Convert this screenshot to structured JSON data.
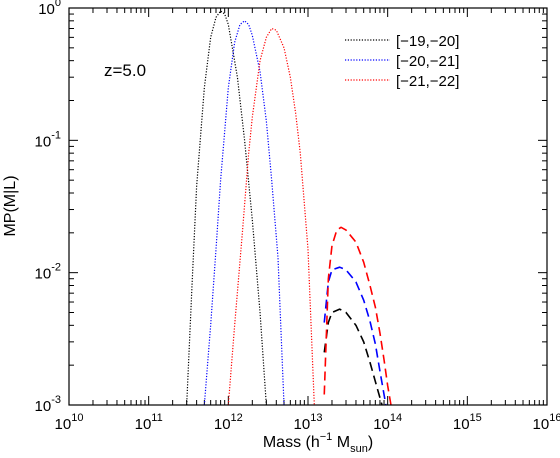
{
  "chart_data": {
    "type": "line",
    "annotation": "z=5.0",
    "xlabel": {
      "main": "Mass (h",
      "sup": "−1",
      "mid": " M",
      "sub": "sun",
      "end": ")"
    },
    "ylabel": "MP(M|L)",
    "x_scale": "log",
    "y_scale": "log",
    "xlim": [
      10000000000.0,
      1e+16
    ],
    "ylim": [
      0.001,
      1
    ],
    "x_ticks": [
      {
        "value": 10000000000.0,
        "base": "10",
        "exp": "10"
      },
      {
        "value": 100000000000.0,
        "base": "10",
        "exp": "11"
      },
      {
        "value": 1000000000000.0,
        "base": "10",
        "exp": "12"
      },
      {
        "value": 10000000000000.0,
        "base": "10",
        "exp": "13"
      },
      {
        "value": 100000000000000.0,
        "base": "10",
        "exp": "14"
      },
      {
        "value": 1000000000000000.0,
        "base": "10",
        "exp": "15"
      },
      {
        "value": 1e+16,
        "base": "10",
        "exp": "16"
      }
    ],
    "y_ticks": [
      {
        "value": 0.001,
        "base": "10",
        "exp": "-3"
      },
      {
        "value": 0.01,
        "base": "10",
        "exp": "-2"
      },
      {
        "value": 0.1,
        "base": "10",
        "exp": "-1"
      },
      {
        "value": 1,
        "base": "10",
        "exp": "0"
      }
    ],
    "legend_position": "top-right",
    "grid": false,
    "series": [
      {
        "name": "[−19,−20]",
        "color": "#000000",
        "segments": [
          {
            "style": "dotted",
            "x": [
              300000000000.0,
              350000000000.0,
              400000000000.0,
              500000000000.0,
              600000000000.0,
              700000000000.0,
              800000000000.0,
              900000000000.0,
              1000000000000.0,
              1300000000000.0,
              1600000000000.0,
              2000000000000.0,
              2500000000000.0,
              3000000000000.0
            ],
            "y": [
              0.001,
              0.008,
              0.045,
              0.25,
              0.6,
              0.85,
              0.95,
              0.9,
              0.75,
              0.3,
              0.1,
              0.025,
              0.005,
              0.001
            ]
          },
          {
            "style": "dashed",
            "x": [
              16000000000000.0,
              18000000000000.0,
              20000000000000.0,
              25000000000000.0,
              30000000000000.0,
              40000000000000.0,
              50000000000000.0,
              60000000000000.0,
              75000000000000.0,
              85000000000000.0
            ],
            "y": [
              0.0025,
              0.0042,
              0.005,
              0.0053,
              0.005,
              0.004,
              0.003,
              0.0021,
              0.0013,
              0.001
            ]
          }
        ]
      },
      {
        "name": "[−20,−21]",
        "color": "#0000ff",
        "segments": [
          {
            "style": "dotted",
            "x": [
              500000000000.0,
              600000000000.0,
              700000000000.0,
              800000000000.0,
              1000000000000.0,
              1200000000000.0,
              1400000000000.0,
              1600000000000.0,
              1800000000000.0,
              2000000000000.0,
              2500000000000.0,
              3000000000000.0,
              3500000000000.0,
              4200000000000.0,
              5000000000000.0
            ],
            "y": [
              0.001,
              0.004,
              0.015,
              0.05,
              0.25,
              0.55,
              0.75,
              0.8,
              0.75,
              0.62,
              0.33,
              0.14,
              0.05,
              0.013,
              0.001
            ]
          },
          {
            "style": "dashed",
            "x": [
              16000000000000.0,
              18000000000000.0,
              20000000000000.0,
              25000000000000.0,
              30000000000000.0,
              40000000000000.0,
              50000000000000.0,
              60000000000000.0,
              70000000000000.0,
              80000000000000.0,
              95000000000000.0
            ],
            "y": [
              0.0042,
              0.0085,
              0.0105,
              0.011,
              0.0105,
              0.0085,
              0.0062,
              0.0043,
              0.0029,
              0.0018,
              0.001
            ]
          }
        ]
      },
      {
        "name": "[−21,−22]",
        "color": "#ff0000",
        "segments": [
          {
            "style": "dotted",
            "x": [
              1000000000000.0,
              1200000000000.0,
              1500000000000.0,
              1800000000000.0,
              2000000000000.0,
              2500000000000.0,
              3000000000000.0,
              3500000000000.0,
              4000000000000.0,
              5000000000000.0,
              6000000000000.0,
              7000000000000.0,
              8000000000000.0,
              10000000000000.0,
              12000000000000.0
            ],
            "y": [
              0.001,
              0.004,
              0.02,
              0.08,
              0.15,
              0.4,
              0.6,
              0.7,
              0.68,
              0.5,
              0.3,
              0.16,
              0.08,
              0.015,
              0.001
            ]
          },
          {
            "style": "dashed",
            "x": [
              16000000000000.0,
              18000000000000.0,
              20000000000000.0,
              23000000000000.0,
              26000000000000.0,
              30000000000000.0,
              40000000000000.0,
              50000000000000.0,
              60000000000000.0,
              70000000000000.0,
              80000000000000.0,
              90000000000000.0,
              100000000000000.0,
              110000000000000.0
            ],
            "y": [
              0.0012,
              0.009,
              0.016,
              0.021,
              0.022,
              0.021,
              0.017,
              0.012,
              0.008,
              0.0055,
              0.0035,
              0.0022,
              0.0014,
              0.001
            ]
          }
        ]
      }
    ]
  }
}
